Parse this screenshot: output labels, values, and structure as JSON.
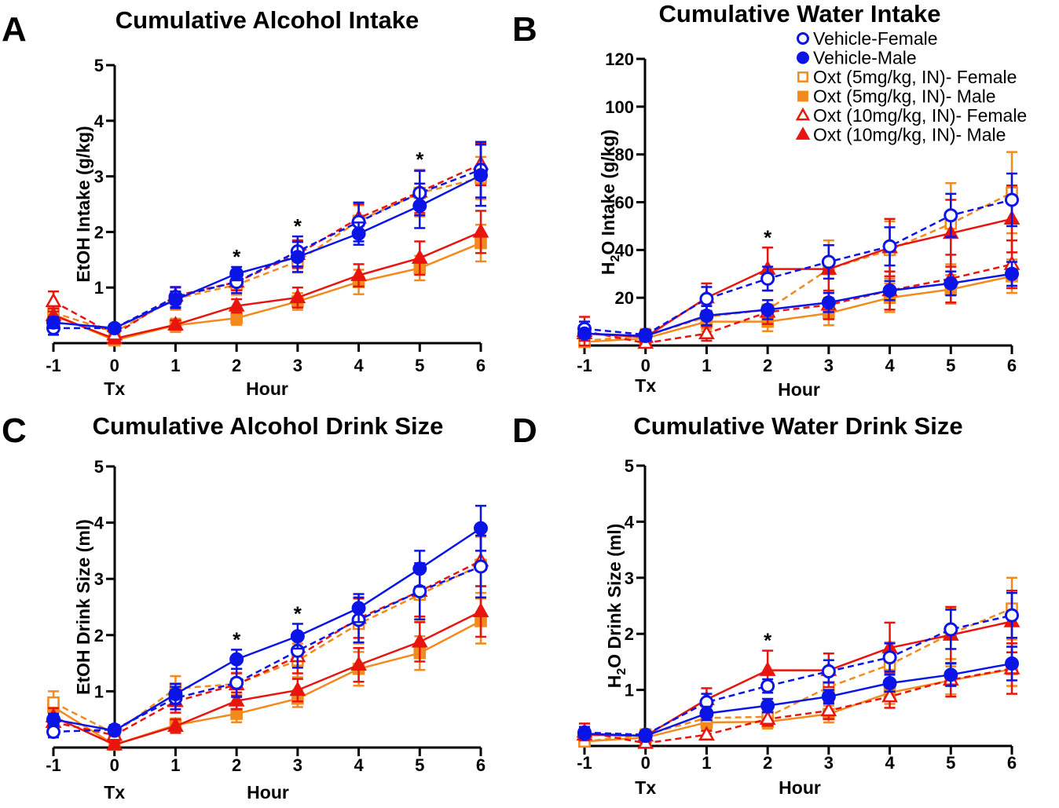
{
  "chart_data": [
    {
      "panel": "A",
      "type": "line",
      "title": "Cumulative Alcohol Intake",
      "xlabel": "Hour",
      "xsub": "Tx",
      "ylabel": "EtOH Intake (g/kg)",
      "xlim": [
        -1,
        6
      ],
      "ylim": [
        0,
        5
      ],
      "xticks": [
        -1,
        0,
        1,
        2,
        3,
        4,
        5,
        6
      ],
      "yticks": [
        1,
        2,
        3,
        4,
        5
      ],
      "x": [
        -1,
        0,
        1,
        2,
        3,
        4,
        5,
        6
      ],
      "stars": [
        2,
        3,
        5
      ],
      "series": [
        {
          "name": "Vehicle-Female",
          "values": [
            0.27,
            0.27,
            0.83,
            1.1,
            1.65,
            2.18,
            2.7,
            3.12
          ],
          "errors": [
            0.12,
            0.07,
            0.18,
            0.2,
            0.27,
            0.35,
            0.4,
            0.5
          ]
        },
        {
          "name": "Vehicle-Male",
          "values": [
            0.37,
            0.27,
            0.78,
            1.25,
            1.55,
            1.97,
            2.47,
            3.02
          ],
          "errors": [
            0.1,
            0.07,
            0.15,
            0.12,
            0.27,
            0.2,
            0.4,
            0.55
          ]
        },
        {
          "name": "Oxt (5mg/kg, IN)- Female",
          "values": [
            0.55,
            0.2,
            0.8,
            1.05,
            1.47,
            2.2,
            2.7,
            2.97
          ],
          "errors": [
            0.12,
            0.07,
            0.2,
            0.18,
            0.2,
            0.28,
            0.42,
            0.38
          ]
        },
        {
          "name": "Oxt (5mg/kg, IN)- Male",
          "values": [
            0.52,
            0.05,
            0.32,
            0.45,
            0.75,
            1.1,
            1.35,
            1.8
          ],
          "errors": [
            0.12,
            0.05,
            0.12,
            0.12,
            0.15,
            0.22,
            0.22,
            0.33
          ]
        },
        {
          "name": "Oxt (10mg/kg, IN)- Female",
          "values": [
            0.75,
            0.15,
            0.85,
            1.1,
            1.6,
            2.25,
            2.72,
            3.22
          ],
          "errors": [
            0.18,
            0.07,
            0.15,
            0.15,
            0.25,
            0.25,
            0.38,
            0.38
          ]
        },
        {
          "name": "Oxt (10mg/kg, IN)- Male",
          "values": [
            0.5,
            0.08,
            0.33,
            0.67,
            0.82,
            1.22,
            1.53,
            2.0
          ],
          "errors": [
            0.12,
            0.05,
            0.08,
            0.12,
            0.18,
            0.2,
            0.3,
            0.38
          ]
        }
      ]
    },
    {
      "panel": "B",
      "type": "line",
      "title": "Cumulative Water Intake",
      "xlabel": "Hour",
      "xsub": "Tx",
      "ylabel": "H2O Intake (g/kg)",
      "xlim": [
        -1,
        6
      ],
      "ylim": [
        0,
        120
      ],
      "xticks": [
        -1,
        0,
        1,
        2,
        3,
        4,
        5,
        6
      ],
      "yticks": [
        20,
        40,
        60,
        80,
        100,
        120
      ],
      "x": [
        -1,
        0,
        1,
        2,
        3,
        4,
        5,
        6
      ],
      "stars": [
        2
      ],
      "legend_position": "top-right",
      "series": [
        {
          "name": "Vehicle-Female",
          "values": [
            7,
            4.5,
            19.5,
            28,
            35,
            41.5,
            54.5,
            61
          ],
          "errors": [
            3,
            2,
            5,
            5,
            7,
            8,
            9,
            11
          ]
        },
        {
          "name": "Vehicle-Male",
          "values": [
            5,
            4,
            12.5,
            15,
            18,
            23,
            26,
            30
          ],
          "errors": [
            2,
            2,
            4,
            4,
            4,
            4,
            5,
            5
          ]
        },
        {
          "name": "Oxt (5mg/kg, IN)- Female",
          "values": [
            2,
            4,
            12,
            15,
            32,
            40,
            51,
            64
          ],
          "errors": [
            2,
            3,
            5,
            4,
            12,
            12,
            17,
            17
          ]
        },
        {
          "name": "Oxt (5mg/kg, IN)- Male",
          "values": [
            1.5,
            3,
            10,
            10,
            13.5,
            20,
            23.5,
            29
          ],
          "errors": [
            2,
            2,
            4,
            4,
            5,
            6,
            6,
            7
          ]
        },
        {
          "name": "Oxt (10mg/kg, IN)- Female",
          "values": [
            6,
            1,
            5,
            14,
            17,
            23,
            28,
            34
          ],
          "errors": [
            6,
            2,
            3,
            5,
            6,
            8,
            10,
            10
          ]
        },
        {
          "name": "Oxt (10mg/kg, IN)- Male",
          "values": [
            5,
            3.5,
            20,
            32,
            32,
            41,
            47,
            53
          ],
          "errors": [
            3,
            3,
            6,
            9,
            10,
            12,
            14,
            14
          ]
        }
      ]
    },
    {
      "panel": "C",
      "type": "line",
      "title": "Cumulative Alcohol Drink Size",
      "xlabel": "Hour",
      "xsub": "Tx",
      "ylabel": "EtOH Drink Size (ml)",
      "xlim": [
        -1,
        6
      ],
      "ylim": [
        0,
        5
      ],
      "xticks": [
        -1,
        0,
        1,
        2,
        3,
        4,
        5,
        6
      ],
      "yticks": [
        1,
        2,
        3,
        4,
        5
      ],
      "x": [
        -1,
        0,
        1,
        2,
        3,
        4,
        5,
        6
      ],
      "stars": [
        2,
        3
      ],
      "series": [
        {
          "name": "Vehicle-Female",
          "values": [
            0.28,
            0.32,
            0.88,
            1.15,
            1.72,
            2.27,
            2.78,
            3.22
          ],
          "errors": [
            0.1,
            0.08,
            0.2,
            0.25,
            0.3,
            0.4,
            0.5,
            0.55
          ]
        },
        {
          "name": "Vehicle-Male",
          "values": [
            0.5,
            0.3,
            0.95,
            1.57,
            1.98,
            2.48,
            3.18,
            3.9
          ],
          "errors": [
            0.1,
            0.07,
            0.18,
            0.17,
            0.22,
            0.25,
            0.32,
            0.4
          ]
        },
        {
          "name": "Oxt (5mg/kg, IN)- Female",
          "values": [
            0.8,
            0.25,
            1.05,
            1.13,
            1.55,
            2.2,
            2.72,
            3.25
          ],
          "errors": [
            0.2,
            0.1,
            0.22,
            0.2,
            0.3,
            0.35,
            0.45,
            0.5
          ]
        },
        {
          "name": "Oxt (5mg/kg, IN)- Male",
          "values": [
            0.72,
            0.05,
            0.4,
            0.6,
            0.87,
            1.4,
            1.68,
            2.25
          ],
          "errors": [
            0.15,
            0.05,
            0.12,
            0.15,
            0.15,
            0.3,
            0.3,
            0.4
          ]
        },
        {
          "name": "Oxt (10mg/kg, IN)- Female",
          "values": [
            0.45,
            0.22,
            0.82,
            1.12,
            1.62,
            2.3,
            2.78,
            3.32
          ],
          "errors": [
            0.15,
            0.08,
            0.2,
            0.2,
            0.3,
            0.35,
            0.45,
            0.45
          ]
        },
        {
          "name": "Oxt (10mg/kg, IN)- Male",
          "values": [
            0.55,
            0.05,
            0.38,
            0.83,
            1.02,
            1.47,
            1.88,
            2.42
          ],
          "errors": [
            0.15,
            0.05,
            0.12,
            0.15,
            0.2,
            0.3,
            0.35,
            0.45
          ]
        }
      ]
    },
    {
      "panel": "D",
      "type": "line",
      "title": "Cumulative Water Drink Size",
      "xlabel": "Hour",
      "xsub": "Tx",
      "ylabel": "H2O Drink Size (ml)",
      "xlim": [
        -1,
        6
      ],
      "ylim": [
        0,
        5
      ],
      "xticks": [
        -1,
        0,
        1,
        2,
        3,
        4,
        5,
        6
      ],
      "yticks": [
        1,
        2,
        3,
        4,
        5
      ],
      "x": [
        -1,
        0,
        1,
        2,
        3,
        4,
        5,
        6
      ],
      "stars": [
        2
      ],
      "series": [
        {
          "name": "Vehicle-Female",
          "values": [
            0.24,
            0.2,
            0.78,
            1.07,
            1.33,
            1.58,
            2.08,
            2.33
          ],
          "errors": [
            0.1,
            0.05,
            0.15,
            0.12,
            0.2,
            0.25,
            0.35,
            0.4
          ]
        },
        {
          "name": "Vehicle-Male",
          "values": [
            0.22,
            0.18,
            0.58,
            0.72,
            0.88,
            1.12,
            1.27,
            1.47
          ],
          "errors": [
            0.07,
            0.05,
            0.12,
            0.12,
            0.12,
            0.15,
            0.2,
            0.3
          ]
        },
        {
          "name": "Oxt (5mg/kg, IN)- Female",
          "values": [
            0.08,
            0.2,
            0.5,
            0.52,
            1.05,
            1.45,
            2.0,
            2.45
          ],
          "errors": [
            0.05,
            0.1,
            0.2,
            0.12,
            0.3,
            0.4,
            0.45,
            0.55
          ]
        },
        {
          "name": "Oxt (5mg/kg, IN)- Male",
          "values": [
            0.08,
            0.15,
            0.42,
            0.43,
            0.57,
            0.95,
            1.17,
            1.37
          ],
          "errors": [
            0.05,
            0.07,
            0.12,
            0.12,
            0.15,
            0.2,
            0.25,
            0.3
          ]
        },
        {
          "name": "Oxt (10mg/kg, IN)- Female",
          "values": [
            0.25,
            0.05,
            0.2,
            0.48,
            0.63,
            0.88,
            1.18,
            1.38
          ],
          "errors": [
            0.15,
            0.05,
            0.07,
            0.12,
            0.15,
            0.2,
            0.3,
            0.45
          ]
        },
        {
          "name": "Oxt (10mg/kg, IN)- Male",
          "values": [
            0.2,
            0.18,
            0.83,
            1.35,
            1.35,
            1.75,
            1.98,
            2.22
          ],
          "errors": [
            0.1,
            0.05,
            0.2,
            0.35,
            0.3,
            0.45,
            0.5,
            0.55
          ]
        }
      ]
    }
  ],
  "legend": {
    "items": [
      {
        "label": "Vehicle-Female",
        "series_index": 0
      },
      {
        "label": "Vehicle-Male",
        "series_index": 1
      },
      {
        "label": "Oxt (5mg/kg, IN)- Female",
        "series_index": 2
      },
      {
        "label": "Oxt (5mg/kg, IN)- Male",
        "series_index": 3
      },
      {
        "label": "Oxt (10mg/kg, IN)- Female",
        "series_index": 4
      },
      {
        "label": "Oxt (10mg/kg, IN)- Male",
        "series_index": 5
      }
    ]
  },
  "series_styles": [
    {
      "color": "#0a14e6",
      "marker": "circle",
      "filled": false,
      "dashed": true
    },
    {
      "color": "#0a14e6",
      "marker": "circle",
      "filled": true,
      "dashed": false
    },
    {
      "color": "#f28a1d",
      "marker": "square",
      "filled": false,
      "dashed": true
    },
    {
      "color": "#f28a1d",
      "marker": "square",
      "filled": true,
      "dashed": false
    },
    {
      "color": "#e8150f",
      "marker": "triangle",
      "filled": false,
      "dashed": true
    },
    {
      "color": "#e8150f",
      "marker": "triangle",
      "filled": true,
      "dashed": false
    }
  ],
  "significance_marker": "*"
}
